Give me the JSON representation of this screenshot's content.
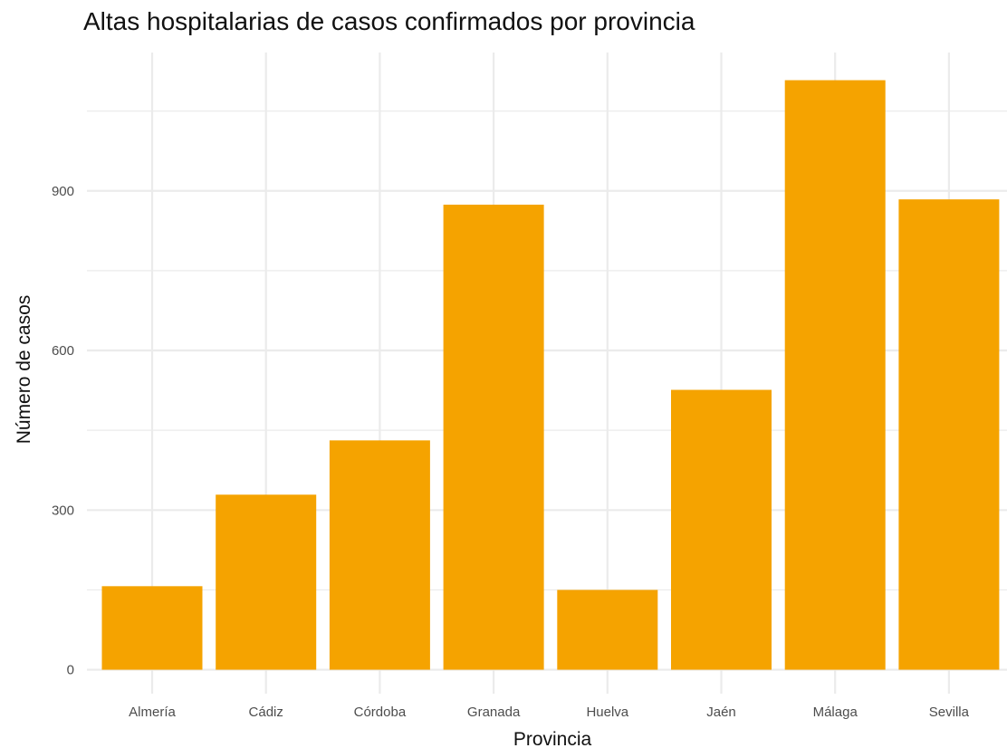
{
  "chart_data": {
    "type": "bar",
    "title": "Altas hospitalarias de casos confirmados por provincia",
    "xlabel": "Provincia",
    "ylabel": "Número de casos",
    "categories": [
      "Almería",
      "Cádiz",
      "Córdoba",
      "Granada",
      "Huelva",
      "Jaén",
      "Málaga",
      "Sevilla"
    ],
    "values": [
      157,
      329,
      431,
      874,
      150,
      526,
      1108,
      884
    ],
    "yticks": [
      0,
      300,
      600,
      900
    ],
    "ylim": [
      -45,
      1160
    ],
    "grid": true,
    "legend": "none",
    "bar_color": "#F5A300",
    "grid_color": "#EBEBEB"
  }
}
